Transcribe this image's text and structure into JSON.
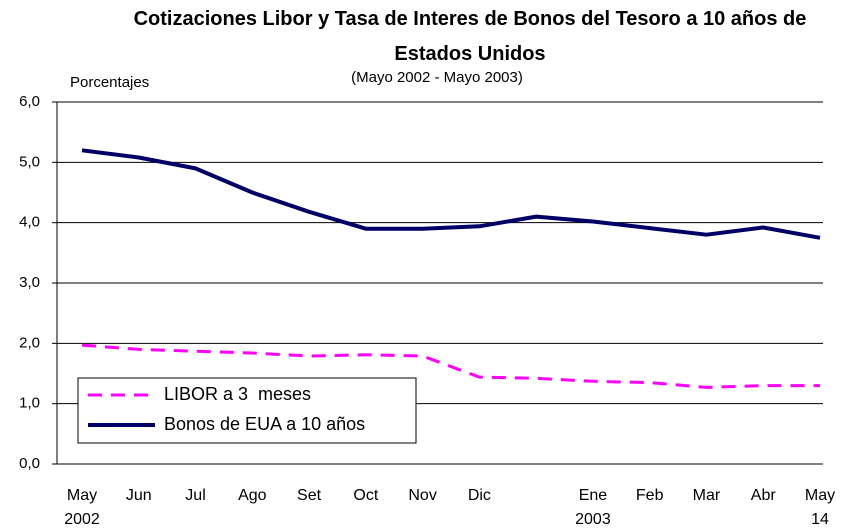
{
  "chart_data": {
    "type": "line",
    "title": "Cotizaciones Libor y Tasa de Interes de Bonos del Tesoro a 10 años de Estados Unidos",
    "subtitle": "(Mayo 2002 - Mayo 2003)",
    "y_label": "Porcentajes",
    "categories": [
      "May\n2002",
      "Jun",
      "Jul",
      "Ago",
      "Set",
      "Oct",
      "Nov",
      "Dic",
      null,
      "Ene\n2003",
      "Feb",
      "Mar",
      "Abr",
      "May\n14"
    ],
    "series": [
      {
        "name": "LIBOR a 3  meses",
        "color": "#ff00ff",
        "dash": true,
        "values": [
          1.97,
          1.9,
          1.87,
          1.84,
          1.79,
          1.81,
          1.79,
          1.44,
          1.42,
          1.37,
          1.35,
          1.27,
          1.3,
          1.3
        ]
      },
      {
        "name": "Bonos de EUA a 10 años",
        "color": "#000066",
        "dash": false,
        "values": [
          5.2,
          5.08,
          4.9,
          4.5,
          4.18,
          3.9,
          3.9,
          3.94,
          4.1,
          4.02,
          3.91,
          3.8,
          3.92,
          3.75
        ]
      }
    ],
    "ylim": [
      0,
      6
    ],
    "yticks": [
      {
        "value": 0,
        "label": "0,0"
      },
      {
        "value": 1,
        "label": "1,0"
      },
      {
        "value": 2,
        "label": "2,0"
      },
      {
        "value": 3,
        "label": "3,0"
      },
      {
        "value": 4,
        "label": "4,0"
      },
      {
        "value": 5,
        "label": "5,0"
      },
      {
        "value": 6,
        "label": "6,0"
      }
    ],
    "grid": true,
    "legend": "lower left"
  }
}
